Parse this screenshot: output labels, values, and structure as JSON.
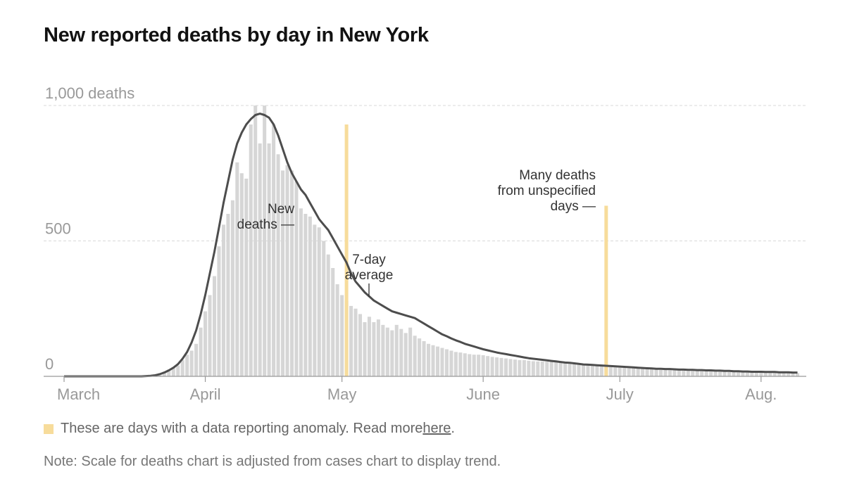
{
  "title": "New reported deaths by day in New York",
  "legend": {
    "text": "These are days with a data reporting anomaly. Read more ",
    "link": "here",
    "end": ".",
    "color": "#f7dc9b"
  },
  "note": "Note: Scale for deaths chart is adjusted from cases chart to display trend.",
  "colors": {
    "bar": "#d6d6d6",
    "line": "#4d4d4d",
    "anomaly": "#f7dc9b",
    "grid": "#d9d9d9",
    "tick": "#999999"
  },
  "chart_data": {
    "type": "bar",
    "title": "New reported deaths by day in New York",
    "start_day_index": 0,
    "x_tick_labels": [
      {
        "label": "March",
        "day": 0
      },
      {
        "label": "April",
        "day": 31
      },
      {
        "label": "May",
        "day": 61
      },
      {
        "label": "June",
        "day": 92
      },
      {
        "label": "July",
        "day": 122
      },
      {
        "label": "Aug.",
        "day": 153
      }
    ],
    "y_tick_labels": [
      {
        "label": "1,000 deaths",
        "value": 1000
      },
      {
        "label": "500",
        "value": 500
      },
      {
        "label": "0",
        "value": 0
      }
    ],
    "ylim": [
      0,
      1000
    ],
    "xlim": [
      0,
      162
    ],
    "grid": true,
    "series": [
      {
        "name": "New deaths",
        "values": [
          0,
          0,
          0,
          0,
          0,
          0,
          0,
          0,
          0,
          0,
          0,
          0,
          0,
          0,
          0,
          0,
          0,
          0,
          3,
          4,
          7,
          12,
          18,
          25,
          32,
          40,
          60,
          80,
          95,
          120,
          180,
          240,
          300,
          370,
          480,
          560,
          600,
          650,
          790,
          750,
          730,
          930,
          1000,
          860,
          1000,
          860,
          930,
          820,
          760,
          780,
          760,
          720,
          620,
          600,
          590,
          560,
          550,
          500,
          450,
          400,
          340,
          300,
          280,
          260,
          250,
          230,
          200,
          220,
          200,
          210,
          190,
          180,
          170,
          190,
          175,
          160,
          180,
          150,
          140,
          130,
          120,
          115,
          110,
          105,
          100,
          95,
          90,
          88,
          85,
          82,
          80,
          80,
          78,
          75,
          72,
          70,
          68,
          66,
          64,
          62,
          60,
          60,
          58,
          56,
          55,
          55,
          54,
          54,
          53,
          52,
          50,
          48,
          46,
          44,
          42,
          40,
          40,
          38,
          37,
          35,
          34,
          33,
          32,
          31,
          30,
          30,
          29,
          28,
          27,
          26,
          25,
          24,
          24,
          23,
          22,
          22,
          21,
          20,
          20,
          20,
          19,
          19,
          18,
          18,
          17,
          17,
          16,
          16,
          16,
          15,
          15,
          15,
          14,
          14,
          14,
          13,
          13,
          13,
          12,
          12,
          12,
          12
        ]
      },
      {
        "name": "7-day average",
        "values": [
          0,
          0,
          0,
          0,
          0,
          0,
          0,
          0,
          0,
          0,
          0,
          0,
          0,
          0,
          0,
          0,
          0,
          0,
          1,
          2,
          4,
          8,
          14,
          22,
          32,
          45,
          65,
          90,
          125,
          170,
          230,
          300,
          380,
          460,
          550,
          640,
          720,
          800,
          860,
          900,
          930,
          950,
          965,
          970,
          965,
          955,
          930,
          890,
          840,
          790,
          750,
          720,
          690,
          670,
          640,
          610,
          580,
          560,
          540,
          510,
          480,
          450,
          420,
          380,
          350,
          330,
          310,
          295,
          280,
          270,
          260,
          250,
          240,
          235,
          230,
          225,
          220,
          215,
          205,
          195,
          185,
          175,
          165,
          155,
          148,
          140,
          133,
          127,
          120,
          115,
          110,
          105,
          100,
          96,
          92,
          88,
          85,
          82,
          79,
          76,
          73,
          70,
          67,
          65,
          63,
          61,
          59,
          57,
          55,
          53,
          51,
          50,
          48,
          46,
          44,
          43,
          42,
          41,
          40,
          39,
          38,
          37,
          36,
          35,
          34,
          33,
          32,
          31,
          30,
          29,
          28,
          28,
          27,
          27,
          26,
          25,
          25,
          24,
          24,
          23,
          23,
          22,
          22,
          21,
          21,
          20,
          20,
          19,
          19,
          18,
          18,
          17,
          17,
          17,
          16,
          16,
          16,
          15,
          15,
          15,
          14,
          14
        ]
      }
    ],
    "anomalies": [
      {
        "day": 62,
        "value": 930
      },
      {
        "day": 119,
        "value": 630
      }
    ],
    "annotations": [
      {
        "lines": [
          "New",
          "deaths —"
        ],
        "target": "New deaths"
      },
      {
        "lines": [
          "7-day",
          "average"
        ],
        "target": "7-day average"
      },
      {
        "lines": [
          "Many deaths",
          "from unspecified",
          "days —"
        ],
        "target": "anomaly"
      }
    ]
  }
}
